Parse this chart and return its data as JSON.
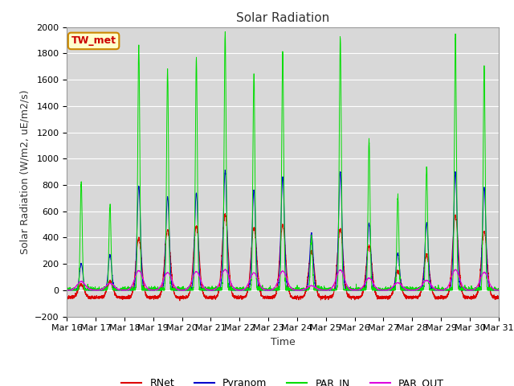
{
  "title": "Solar Radiation",
  "ylabel": "Solar Radiation (W/m2, uE/m2/s)",
  "xlabel": "Time",
  "ylim": [
    -200,
    2000
  ],
  "yticks": [
    -200,
    0,
    200,
    400,
    600,
    800,
    1000,
    1200,
    1400,
    1600,
    1800,
    2000
  ],
  "x_labels": [
    "Mar 16",
    "Mar 17",
    "Mar 18",
    "Mar 19",
    "Mar 20",
    "Mar 21",
    "Mar 22",
    "Mar 23",
    "Mar 24",
    "Mar 25",
    "Mar 26",
    "Mar 27",
    "Mar 28",
    "Mar 29",
    "Mar 30",
    "Mar 31"
  ],
  "colors": {
    "RNet": "#dd0000",
    "Pyranom": "#0000cc",
    "PAR_IN": "#00dd00",
    "PAR_OUT": "#dd00dd"
  },
  "legend_label": "TW_met",
  "legend_box_color": "#ffffcc",
  "legend_box_edge": "#cc8800",
  "legend_text_color": "#cc0000",
  "plot_bg_color": "#d8d8d8",
  "fig_bg_color": "#ffffff",
  "grid_color": "#ffffff",
  "title_fontsize": 11,
  "axis_fontsize": 9,
  "tick_fontsize": 8,
  "legend_fontsize": 9,
  "par_in_peaks": [
    820,
    650,
    1860,
    1670,
    1760,
    1960,
    1650,
    1810,
    420,
    1920,
    1140,
    710,
    940,
    1950,
    1700
  ],
  "pyranom_peaks": [
    200,
    270,
    790,
    710,
    740,
    910,
    760,
    860,
    430,
    900,
    510,
    280,
    510,
    900,
    780
  ],
  "rnet_peaks": [
    100,
    120,
    450,
    510,
    540,
    630,
    530,
    550,
    350,
    520,
    390,
    200,
    320,
    620,
    500
  ]
}
